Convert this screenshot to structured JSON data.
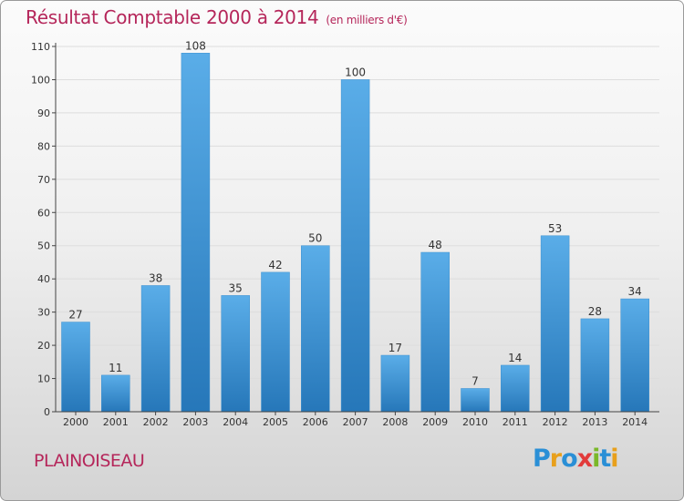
{
  "title": "Résultat Comptable 2000 à 2014",
  "unit": "(en milliers d'€)",
  "commune": "PLAINOISEAU",
  "logo": {
    "letters": [
      "P",
      "r",
      "o",
      "x",
      "i",
      "t",
      "i"
    ],
    "colors": [
      "#2a8fd6",
      "#e8a01c",
      "#2a8fd6",
      "#e23b3b",
      "#7ab829",
      "#2a8fd6",
      "#e8a01c"
    ]
  },
  "colors": {
    "bar_light": "#5aade8",
    "bar_dark": "#2677b9",
    "title": "#b5265a",
    "grid": "#dddddd",
    "axis": "#444444"
  },
  "chart_data": {
    "type": "bar",
    "categories": [
      "2000",
      "2001",
      "2002",
      "2003",
      "2004",
      "2005",
      "2006",
      "2007",
      "2008",
      "2009",
      "2010",
      "2011",
      "2012",
      "2013",
      "2014"
    ],
    "values": [
      27,
      11,
      38,
      108,
      35,
      42,
      50,
      100,
      17,
      48,
      7,
      14,
      53,
      28,
      34
    ],
    "yticks": [
      0,
      10,
      20,
      30,
      40,
      50,
      60,
      70,
      80,
      90,
      100,
      110
    ],
    "ylim": [
      0,
      110
    ],
    "grid": true,
    "title": "Résultat Comptable 2000 à 2014",
    "xlabel": "",
    "ylabel": ""
  }
}
